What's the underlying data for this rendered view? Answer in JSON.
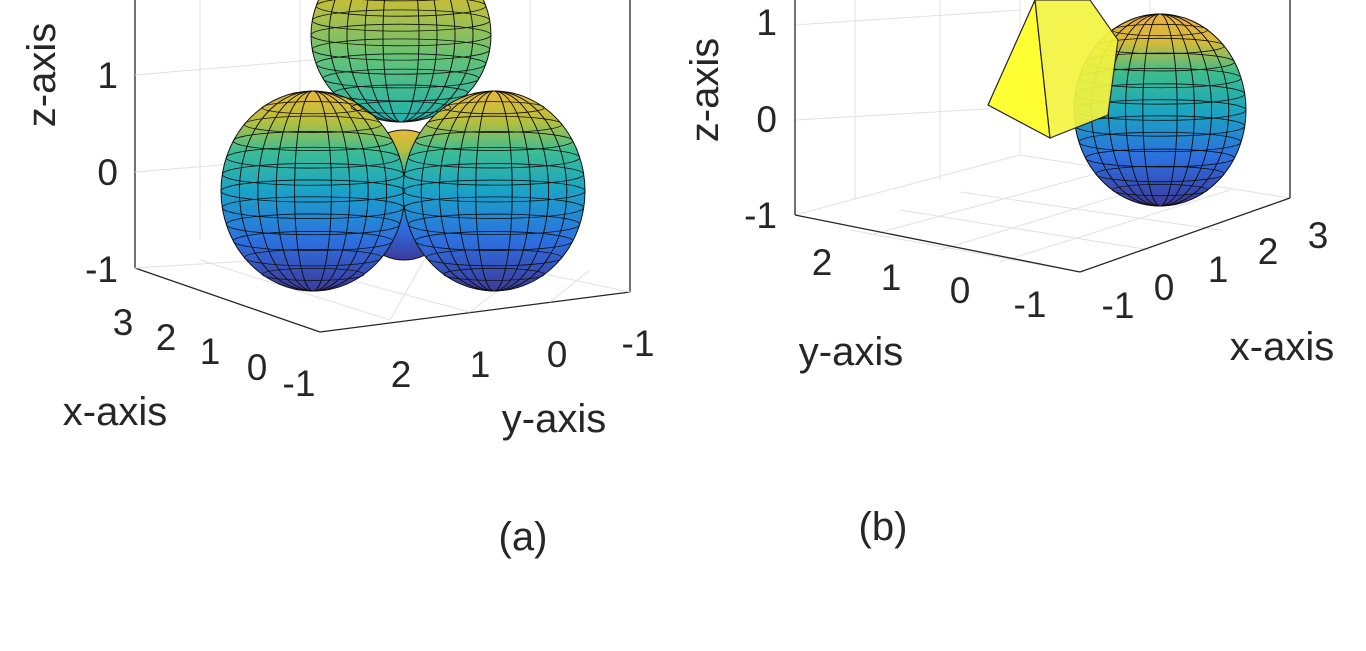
{
  "chart_data": [
    {
      "type": "3d-surface",
      "panel": "(a)",
      "caption": "(a)",
      "objects": [
        "sphere",
        "sphere",
        "sphere",
        "sphere"
      ],
      "xlabel": "x-axis",
      "ylabel": "y-axis",
      "zlabel": "z-axis",
      "x_ticks": [
        "3",
        "2",
        "1",
        "0",
        "-1"
      ],
      "y_ticks": [
        "2",
        "1",
        "0",
        "-1"
      ],
      "z_ticks": [
        "1",
        "0",
        "-1"
      ],
      "colormap": "parula",
      "grid": true
    },
    {
      "type": "3d-surface",
      "panel": "(b)",
      "caption": "(b)",
      "objects": [
        "pyramid",
        "sphere"
      ],
      "xlabel": "x-axis",
      "ylabel": "y-axis",
      "zlabel": "z-axis",
      "x_ticks": [
        "-1",
        "0",
        "1",
        "2",
        "3"
      ],
      "y_ticks": [
        "2",
        "1",
        "0",
        "-1"
      ],
      "z_ticks": [
        "1",
        "0",
        "-1"
      ],
      "colormap": "parula",
      "pyramid_color": "#ffff33",
      "grid": true
    }
  ]
}
